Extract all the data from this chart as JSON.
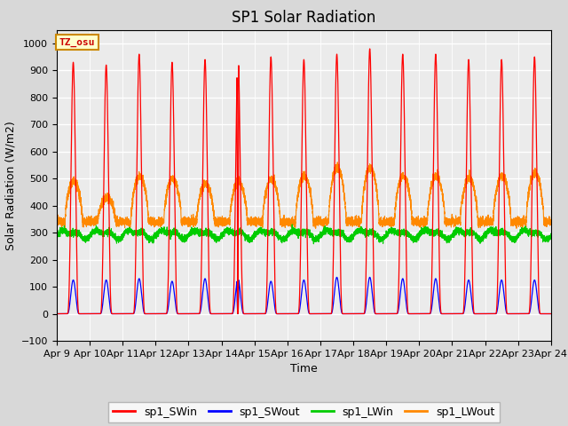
{
  "title": "SP1 Solar Radiation",
  "ylabel": "Solar Radiation (W/m2)",
  "xlabel": "Time",
  "ylim": [
    -100,
    1050
  ],
  "xlim": [
    0,
    15
  ],
  "xtick_labels": [
    "Apr 9",
    "Apr 10",
    "Apr 11",
    "Apr 12",
    "Apr 13",
    "Apr 14",
    "Apr 15",
    "Apr 16",
    "Apr 17",
    "Apr 18",
    "Apr 19",
    "Apr 20",
    "Apr 21",
    "Apr 22",
    "Apr 23",
    "Apr 24"
  ],
  "tz_label": "TZ_osu",
  "colors": {
    "sp1_SWin": "#ff0000",
    "sp1_SWout": "#0000ff",
    "sp1_LWin": "#00cc00",
    "sp1_LWout": "#ff8800"
  },
  "n_days": 15,
  "sw_peak": [
    930,
    920,
    960,
    930,
    940,
    970,
    950,
    940,
    960,
    980,
    960,
    960,
    940,
    940,
    950
  ],
  "sw_out_peak": [
    125,
    125,
    130,
    120,
    130,
    130,
    120,
    125,
    135,
    135,
    130,
    130,
    125,
    125,
    125
  ],
  "lw_in_base": 295,
  "lw_out_night": 340,
  "lw_out_day_peak": [
    490,
    430,
    510,
    500,
    480,
    490,
    500,
    510,
    540,
    540,
    510,
    510,
    500,
    510,
    520
  ],
  "anomaly_day": 5,
  "background_color": "#ebebeb",
  "grid_color": "#ffffff",
  "title_fontsize": 12,
  "label_fontsize": 9,
  "tick_fontsize": 8
}
